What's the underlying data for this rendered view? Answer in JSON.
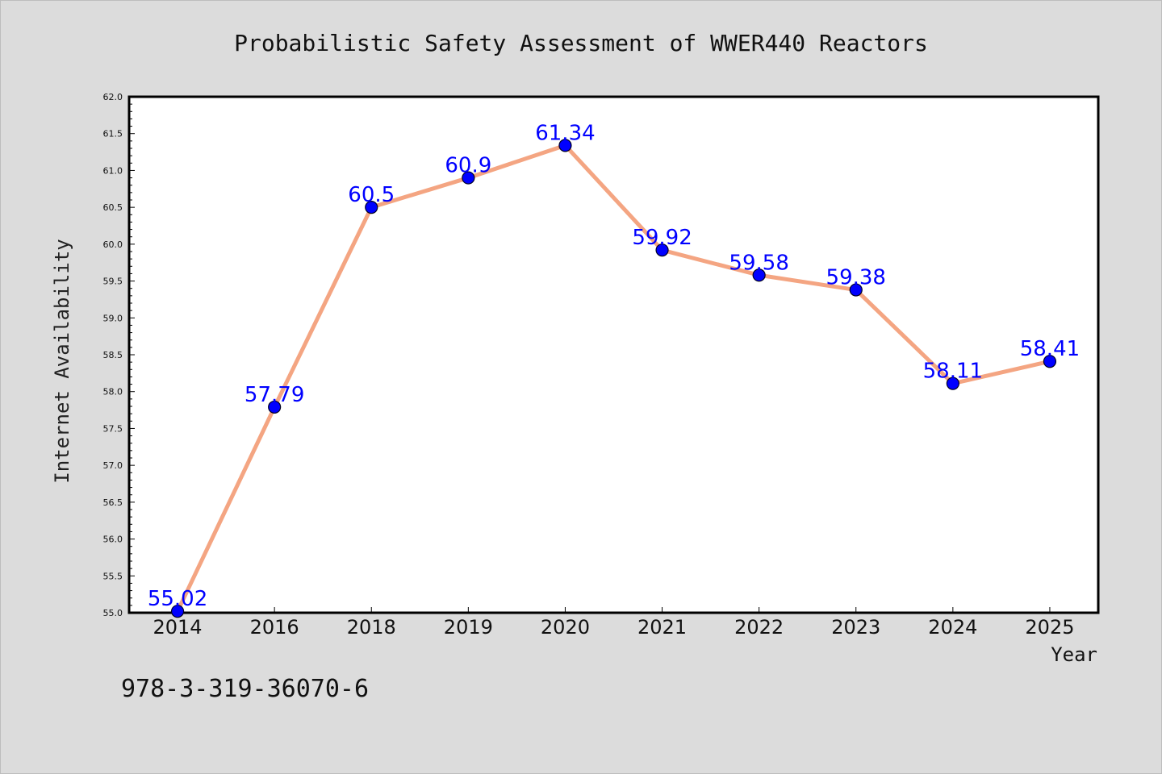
{
  "chart_data": {
    "type": "line",
    "title": "Probabilistic Safety Assessment of WWER440 Reactors",
    "xlabel": "Year",
    "ylabel": "Internet Availability",
    "categories": [
      "2014",
      "2016",
      "2018",
      "2019",
      "2020",
      "2021",
      "2022",
      "2023",
      "2024",
      "2025"
    ],
    "values": [
      55.02,
      57.79,
      60.5,
      60.9,
      61.34,
      59.92,
      59.58,
      59.38,
      58.11,
      58.41
    ],
    "data_labels": [
      "55.02",
      "57.79",
      "60.5",
      "60.9",
      "61.34",
      "59.92",
      "59.58",
      "59.38",
      "58.11",
      "58.41"
    ],
    "ylim": [
      55.0,
      62.0
    ],
    "yticks": [
      "55.0",
      "55.5",
      "56.0",
      "56.5",
      "57.0",
      "57.5",
      "58.0",
      "58.5",
      "59.0",
      "59.5",
      "60.0",
      "60.5",
      "61.0",
      "61.5",
      "62.0"
    ],
    "grid": false,
    "line_color": "#f4a582",
    "marker_color": "#0000ff",
    "label_color": "#0000ff",
    "background_color": "#dcdcdc",
    "plot_background_color": "#ffffff"
  },
  "footer_text": "978-3-319-36070-6"
}
